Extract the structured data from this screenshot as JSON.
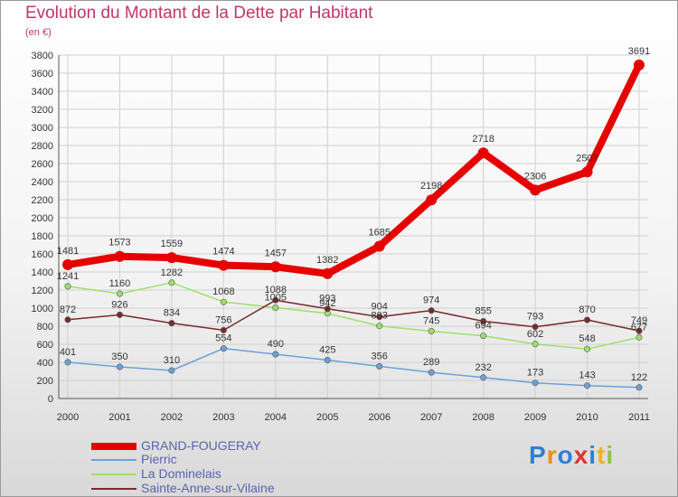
{
  "header": {
    "title": "Evolution du Montant de la Dette par Habitant",
    "subtitle": "(en €)"
  },
  "logo": {
    "text": "Proxiti"
  },
  "colors": {
    "title": "#c4356a",
    "axis_text": "#333333",
    "grid": "#d0d0d0",
    "legend_text": "#5a62ad"
  },
  "chart_data": {
    "type": "line",
    "x": [
      "2000",
      "2001",
      "2002",
      "2003",
      "2004",
      "2005",
      "2006",
      "2007",
      "2008",
      "2009",
      "2010",
      "2011"
    ],
    "ylim": [
      0,
      3800
    ],
    "yticks": [
      0,
      200,
      400,
      600,
      800,
      1000,
      1200,
      1400,
      1600,
      1800,
      2000,
      2200,
      2400,
      2600,
      2800,
      3000,
      3200,
      3400,
      3600,
      3800
    ],
    "grid": true,
    "legend_position": "bottom-left",
    "series": [
      {
        "name": "GRAND-FOUGERAY",
        "color": "#e60000",
        "values": [
          1481,
          1573,
          1559,
          1474,
          1457,
          1382,
          1685,
          2198,
          2718,
          2306,
          2507,
          3691
        ],
        "labels": [
          "1481",
          "1573",
          "1559",
          "1474",
          "1457",
          "1382",
          "1685",
          "2198",
          "2718",
          "2306",
          "2507",
          "3691"
        ]
      },
      {
        "name": "Pierric",
        "color": "#6aa2d8",
        "values": [
          401,
          350,
          310,
          554,
          490,
          425,
          356,
          289,
          232,
          173,
          143,
          122
        ],
        "labels": [
          "401",
          "350",
          "310",
          "554",
          "490",
          "425",
          "356",
          "289",
          "232",
          "173",
          "143",
          "122"
        ]
      },
      {
        "name": "La Dominelais",
        "color": "#9ce06a",
        "values": [
          1241,
          1160,
          1282,
          1068,
          1005,
          942,
          803,
          745,
          694,
          602,
          548,
          677
        ],
        "labels": [
          "1241",
          "1160",
          "1282",
          "1068",
          "1005",
          "942",
          "803",
          "745",
          "694",
          "602",
          "548",
          "677"
        ]
      },
      {
        "name": "Sainte-Anne-sur-Vilaine",
        "color": "#7a2a2a",
        "values": [
          872,
          926,
          834,
          756,
          1088,
          993,
          904,
          974,
          855,
          793,
          870,
          749
        ],
        "labels": [
          "872",
          "926",
          "834",
          "756",
          "1088",
          "993",
          "904",
          "974",
          "855",
          "793",
          "870",
          "749"
        ]
      }
    ]
  }
}
